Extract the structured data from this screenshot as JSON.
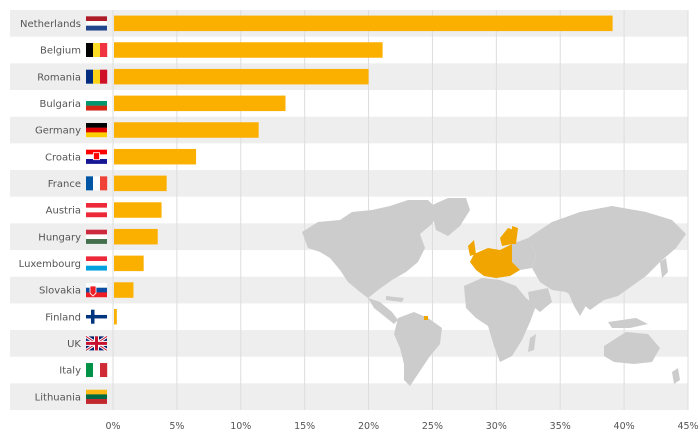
{
  "chart_data": {
    "type": "bar",
    "orientation": "horizontal",
    "categories": [
      "Netherlands",
      "Belgium",
      "Romania",
      "Bulgaria",
      "Germany",
      "Croatia",
      "France",
      "Austria",
      "Hungary",
      "Luxembourg",
      "Slovakia",
      "Finland",
      "UK",
      "Italy",
      "Lithuania"
    ],
    "values": [
      39.1,
      21.1,
      20.0,
      13.5,
      11.4,
      6.5,
      4.2,
      3.8,
      3.5,
      2.4,
      1.6,
      0.3,
      0,
      0,
      0
    ],
    "xlim": [
      0,
      45
    ],
    "xticks": [
      0,
      5,
      10,
      15,
      20,
      25,
      30,
      35,
      40,
      45
    ],
    "xtick_labels": [
      "0%",
      "5%",
      "10%",
      "15%",
      "20%",
      "25%",
      "30%",
      "35%",
      "40%",
      "45%"
    ],
    "grid": true,
    "flags": [
      "nl",
      "be",
      "ro",
      "bg",
      "de",
      "hr",
      "fr",
      "at",
      "hu",
      "lu",
      "sk",
      "fi",
      "uk",
      "it",
      "lt"
    ]
  },
  "colors": {
    "bar": "#fbb000",
    "stripe": "#eeeeee",
    "grid": "#dddddd",
    "map_land": "#cccccc",
    "map_highlight": "#f0a500"
  }
}
